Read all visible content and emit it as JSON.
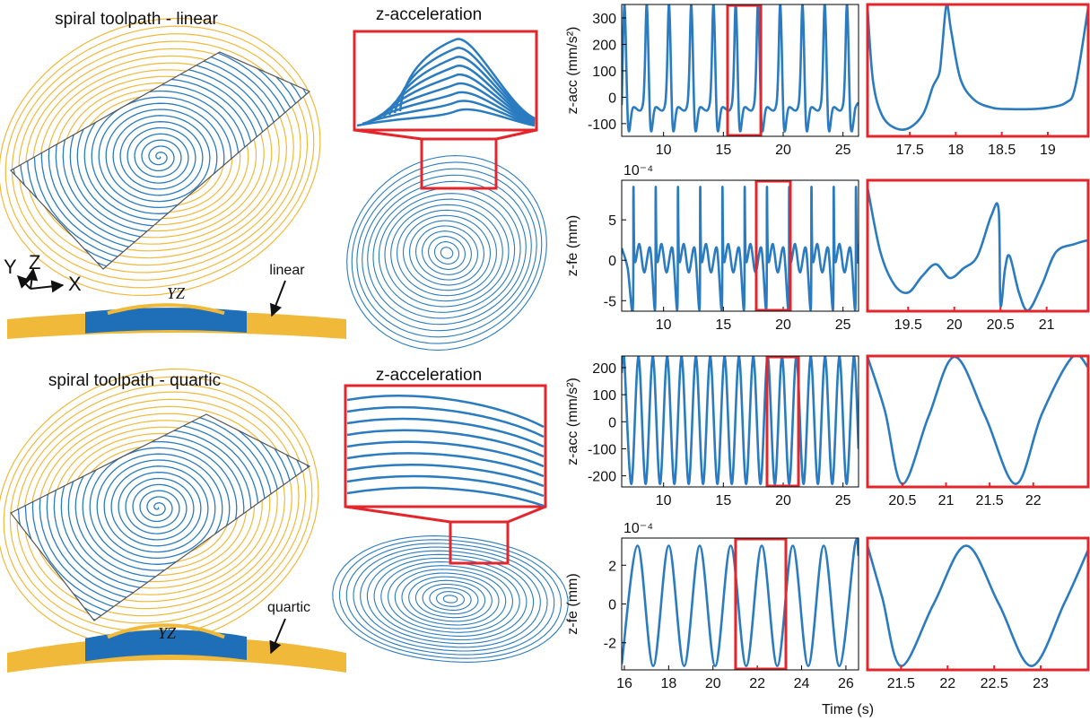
{
  "figure": {
    "panels": [
      {
        "title": "spiral toolpath - linear",
        "section_label": "YZ",
        "profile_label": "linear",
        "axes": [
          "Y",
          "Z",
          "X"
        ]
      },
      {
        "title": "spiral toolpath - quartic",
        "section_label": "YZ",
        "profile_label": "quartic"
      }
    ],
    "middle_titles": [
      "z-acceleration",
      "z-acceleration"
    ]
  },
  "chart_data": [
    {
      "type": "line",
      "y_label": "z-acc (mm/s²)",
      "color": "#2a7bc0",
      "frame_color": "#000000",
      "highlight": [
        15.35,
        18.13
      ],
      "highlight_color": "#e3262b",
      "xlim": [
        6.5,
        26.3
      ],
      "xticks": [
        10,
        15,
        20,
        25
      ],
      "ylim": [
        -148,
        351
      ],
      "yticks": [
        -100,
        0,
        100,
        200,
        300
      ],
      "x": [
        6.5,
        6.74,
        7.04,
        7.44,
        8.29,
        8.6,
        8.9,
        9.3,
        10.15,
        10.46,
        10.76,
        11.16,
        12.01,
        12.32,
        12.62,
        13.02,
        13.87,
        14.18,
        14.48,
        14.88,
        15.73,
        16.04,
        16.34,
        16.74,
        17.59,
        17.9,
        18.2,
        18.6,
        19.45,
        19.76,
        20.06,
        20.46,
        21.31,
        21.62,
        21.92,
        22.32,
        23.17,
        23.48,
        23.78,
        24.18,
        25.03,
        25.34,
        25.64,
        26.04,
        26.3
      ],
      "values": [
        -30,
        350,
        -110,
        -40,
        -20,
        350,
        -110,
        -40,
        -20,
        350,
        -110,
        -40,
        -20,
        350,
        -110,
        -40,
        -20,
        350,
        -110,
        -40,
        -20,
        350,
        -110,
        -40,
        -20,
        350,
        -110,
        -40,
        -20,
        350,
        -110,
        -40,
        -20,
        350,
        -110,
        -40,
        -20,
        350,
        -110,
        -40,
        -20,
        350,
        -110,
        -40,
        -20
      ]
    },
    {
      "type": "line",
      "color": "#2a7bc0",
      "frame_color": "#e3262b",
      "xlim": [
        17.04,
        19.44
      ],
      "xticks": [
        17.5,
        18,
        18.5,
        19
      ],
      "ylim": [
        -148,
        351
      ],
      "x": [
        17.04,
        17.1,
        17.2,
        17.35,
        17.5,
        17.65,
        17.75,
        17.82,
        17.85,
        17.9,
        17.95,
        18.05,
        18.2,
        18.4,
        18.6,
        18.8,
        19.0,
        19.2,
        19.3,
        19.44
      ],
      "values": [
        340,
        60,
        -70,
        -118,
        -115,
        -60,
        40,
        90,
        180,
        350,
        250,
        70,
        -10,
        -40,
        -45,
        -45,
        -40,
        -20,
        40,
        340
      ]
    },
    {
      "type": "line",
      "y_label": "z-fe (mm)",
      "y_multiplier": "10⁻⁴",
      "color": "#2a7bc0",
      "frame_color": "#000000",
      "highlight": [
        17.75,
        20.6
      ],
      "highlight_color": "#e3262b",
      "xlim": [
        6.5,
        26.3
      ],
      "xticks": [
        10,
        15,
        20,
        25
      ],
      "ylim": [
        -6.3,
        9.9
      ],
      "yticks": [
        -5,
        0,
        5
      ],
      "x": [
        6.5,
        7.0,
        7.43,
        7.48,
        7.58,
        7.98,
        8.38,
        8.88,
        9.29,
        9.34,
        9.44,
        9.84,
        10.24,
        10.74,
        11.15,
        11.2,
        11.3,
        11.7,
        12.1,
        12.6,
        13.01,
        13.06,
        13.16,
        13.56,
        13.96,
        14.46,
        14.87,
        14.92,
        15.02,
        15.42,
        15.82,
        16.32,
        16.73,
        16.78,
        16.88,
        17.28,
        17.68,
        18.18,
        18.59,
        18.64,
        18.74,
        19.14,
        19.54,
        20.04,
        20.45,
        20.5,
        20.6,
        21.0,
        21.4,
        21.9,
        22.31,
        22.36,
        22.46,
        22.86,
        23.26,
        23.76,
        24.17,
        24.22,
        24.32,
        24.72,
        25.12,
        25.62,
        26.03,
        26.08,
        26.18,
        26.3
      ],
      "values": [
        1.5,
        -1,
        -6,
        9,
        0,
        2,
        -1.5,
        1.5,
        -6,
        9,
        0,
        2,
        -1.5,
        1.5,
        -6,
        9,
        0,
        2,
        -1.5,
        1.5,
        -6,
        9,
        0,
        2,
        -1.5,
        1.5,
        -6,
        9,
        0,
        2,
        -1.5,
        1.5,
        -6,
        9,
        0,
        2,
        -1.5,
        1.5,
        -6,
        9,
        0,
        2,
        -1.5,
        1.5,
        -6,
        9,
        0,
        2,
        -1.5,
        1.5,
        -6,
        9,
        0,
        2,
        -1.5,
        1.5,
        -6,
        9,
        0,
        2,
        -1.5,
        1.5,
        -6,
        9,
        0,
        2
      ]
    },
    {
      "type": "line",
      "color": "#2a7bc0",
      "frame_color": "#e3262b",
      "xlim": [
        19.06,
        21.45
      ],
      "xticks": [
        19.5,
        20,
        20.5,
        21
      ],
      "ylim": [
        -6.3,
        9.9
      ],
      "x": [
        19.06,
        19.2,
        19.35,
        19.5,
        19.65,
        19.8,
        19.95,
        20.1,
        20.25,
        20.4,
        20.48,
        20.5,
        20.55,
        20.6,
        20.7,
        20.8,
        20.95,
        21.1,
        21.3,
        21.45
      ],
      "values": [
        9,
        1,
        -3,
        -4,
        -2,
        -0.5,
        -2.2,
        -1,
        0.5,
        5.5,
        6.2,
        -5.5,
        -1,
        0.5,
        -4,
        -6.2,
        -3,
        1,
        2,
        2.5
      ]
    },
    {
      "type": "line",
      "y_label": "z-acc (mm/s²)",
      "color": "#2a7bc0",
      "frame_color": "#000000",
      "highlight": [
        18.65,
        21.28
      ],
      "highlight_color": "#e3262b",
      "xlim": [
        6.5,
        26.3
      ],
      "xticks": [
        10,
        15,
        20,
        25
      ],
      "ylim": [
        -241,
        243
      ],
      "yticks": [
        -200,
        -100,
        0,
        100,
        200
      ],
      "x": [
        6.5,
        6.7,
        7.3,
        7.9,
        8.5,
        9.1,
        9.7,
        10.3,
        10.9,
        11.5,
        12.1,
        12.7,
        13.3,
        13.9,
        14.5,
        15.1,
        15.7,
        16.3,
        16.9,
        17.5,
        18.1,
        18.7,
        19.3,
        19.9,
        20.5,
        21.1,
        21.7,
        22.3,
        22.9,
        23.5,
        24.1,
        24.7,
        25.3,
        25.9,
        26.3
      ],
      "values": [
        180,
        240,
        -230,
        240,
        -230,
        240,
        -230,
        240,
        -230,
        240,
        -230,
        240,
        -230,
        240,
        -230,
        240,
        -230,
        240,
        -230,
        240,
        -230,
        240,
        -230,
        240,
        -230,
        240,
        -230,
        240,
        -230,
        240,
        -230,
        240,
        -230,
        240,
        -100
      ]
    },
    {
      "type": "line",
      "color": "#2a7bc0",
      "frame_color": "#e3262b",
      "xlim": [
        20.1,
        22.63
      ],
      "xticks": [
        20.5,
        21,
        21.5,
        22
      ],
      "ylim": [
        -241,
        243
      ],
      "x": [
        20.1,
        20.3,
        20.5,
        20.8,
        21.1,
        21.45,
        21.8,
        22.1,
        22.45,
        22.63
      ],
      "values": [
        240,
        40,
        -230,
        20,
        240,
        20,
        -230,
        30,
        240,
        200
      ]
    },
    {
      "type": "line",
      "y_label": "z-fe (mm)",
      "y_multiplier": "10⁻⁴",
      "x_label": "Time (s)",
      "color": "#2a7bc0",
      "frame_color": "#000000",
      "highlight": [
        21.02,
        23.29
      ],
      "highlight_color": "#e3262b",
      "xlim": [
        15.88,
        26.57
      ],
      "xticks": [
        16,
        18,
        20,
        22,
        24,
        26
      ],
      "ylim": [
        -3.4,
        3.4
      ],
      "yticks": [
        -2,
        0,
        2
      ],
      "x": [
        15.88,
        16.6,
        17.3,
        18.0,
        18.7,
        19.4,
        20.1,
        20.8,
        21.5,
        22.2,
        22.9,
        23.6,
        24.3,
        25.0,
        25.7,
        26.4,
        26.57
      ],
      "values": [
        -3.1,
        3.0,
        -3.2,
        3.0,
        -3.2,
        3.0,
        -3.2,
        3.0,
        -3.2,
        3.0,
        -3.2,
        3.0,
        -3.2,
        3.0,
        -3.2,
        3.0,
        2.5
      ]
    },
    {
      "type": "line",
      "color": "#2a7bc0",
      "frame_color": "#e3262b",
      "xlim": [
        21.14,
        23.51
      ],
      "xticks": [
        21.5,
        22,
        22.5,
        23
      ],
      "ylim": [
        -3.4,
        3.4
      ],
      "x": [
        21.14,
        21.3,
        21.5,
        21.85,
        22.2,
        22.55,
        22.9,
        23.25,
        23.51
      ],
      "values": [
        3.0,
        0.3,
        -3.2,
        0,
        3.0,
        0,
        -3.2,
        0,
        2.8
      ]
    }
  ]
}
